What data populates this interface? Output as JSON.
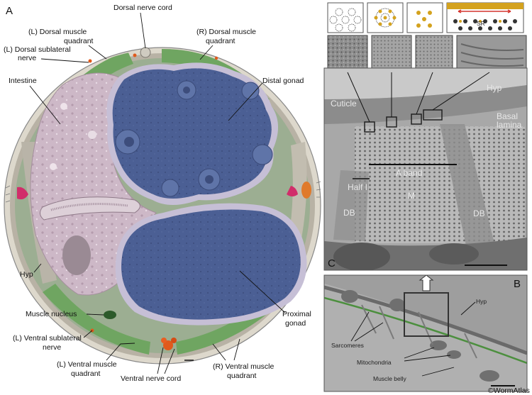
{
  "figure": {
    "credit": "©WormAtlas",
    "panels": {
      "a": "A",
      "b": "B",
      "c": "C"
    },
    "labels": {
      "dorsal_nerve_cord": "Dorsal nerve cord",
      "l_dorsal_muscle_1": "(L) Dorsal muscle",
      "l_dorsal_muscle_2": "quadrant",
      "r_dorsal_muscle_1": "(R) Dorsal muscle",
      "r_dorsal_muscle_2": "quadrant",
      "l_dorsal_sublateral_1": "(L) Dorsal sublateral",
      "l_dorsal_sublateral_2": "nerve",
      "intestine": "Intestine",
      "distal_gonad": "Distal gonad",
      "hyp": "Hyp",
      "muscle_nucleus": "Muscle nucleus",
      "l_ventral_sublateral_1": "(L) Ventral sublateral",
      "l_ventral_sublateral_2": "nerve",
      "l_ventral_muscle_1": "(L) Ventral muscle",
      "l_ventral_muscle_2": "quadrant",
      "ventral_nerve_cord": "Ventral nerve cord",
      "r_ventral_muscle_1": "(R) Ventral muscle",
      "r_ventral_muscle_2": "quadrant",
      "proximal_gonad_1": "Proximal",
      "proximal_gonad_2": "gonad"
    },
    "panel_c": {
      "cuticle": "Cuticle",
      "hyp": "Hyp",
      "basal_1": "Basal",
      "basal_2": "lamina",
      "a_band": "A band",
      "half_i": "Half I",
      "m": "M",
      "db_left": "DB",
      "db_right": "DB",
      "sr": "SR"
    },
    "panel_b": {
      "hyp": "Hyp",
      "sarcomeres": "Sarcomeres",
      "mitochondria": "Mitochondria",
      "muscle_belly": "Muscle belly"
    },
    "colors": {
      "muscle": "#6fa561",
      "gonad": "#4a5f93",
      "intestine": "#c9b4c3",
      "hypodermis": "#b7b1a4",
      "nerve": "#e05a1c",
      "gold": "#d4a21e"
    }
  }
}
